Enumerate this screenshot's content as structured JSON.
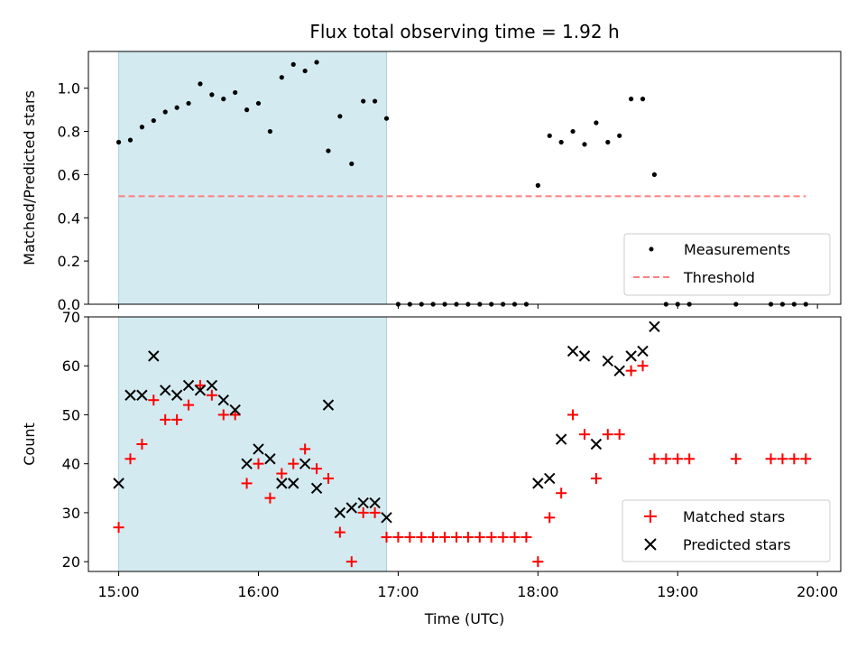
{
  "chart_data": [
    {
      "type": "scatter",
      "title": "Flux total observing time = 1.92 h",
      "xlabel": "",
      "ylabel": "Matched/Predicted stars",
      "xlim": [
        "14:47",
        "20:10"
      ],
      "ylim": [
        0,
        1.17
      ],
      "yticks": [
        "0.0",
        "0.2",
        "0.4",
        "0.6",
        "0.8",
        "1.0"
      ],
      "xticks": [
        "15:00",
        "16:00",
        "17:00",
        "18:00",
        "19:00",
        "20:00"
      ],
      "x_tick_labels_shown": false,
      "grid": false,
      "legend_position": "lower-right",
      "shaded_interval": {
        "start": "15:00",
        "end": "16:55",
        "color": "#d3eaf0"
      },
      "series": [
        {
          "name": "Measurements",
          "kind": "dots",
          "color": "#000000",
          "points": [
            [
              "15:00",
              0.75
            ],
            [
              "15:05",
              0.76
            ],
            [
              "15:10",
              0.82
            ],
            [
              "15:15",
              0.85
            ],
            [
              "15:20",
              0.89
            ],
            [
              "15:25",
              0.91
            ],
            [
              "15:30",
              0.93
            ],
            [
              "15:35",
              1.02
            ],
            [
              "15:40",
              0.97
            ],
            [
              "15:45",
              0.95
            ],
            [
              "15:50",
              0.98
            ],
            [
              "15:55",
              0.9
            ],
            [
              "16:00",
              0.93
            ],
            [
              "16:05",
              0.8
            ],
            [
              "16:10",
              1.05
            ],
            [
              "16:15",
              1.11
            ],
            [
              "16:20",
              1.08
            ],
            [
              "16:25",
              1.12
            ],
            [
              "16:30",
              0.71
            ],
            [
              "16:35",
              0.87
            ],
            [
              "16:40",
              0.65
            ],
            [
              "16:45",
              0.94
            ],
            [
              "16:50",
              0.94
            ],
            [
              "16:55",
              0.86
            ],
            [
              "17:00",
              0.0
            ],
            [
              "17:05",
              0.0
            ],
            [
              "17:10",
              0.0
            ],
            [
              "17:15",
              0.0
            ],
            [
              "17:20",
              0.0
            ],
            [
              "17:25",
              0.0
            ],
            [
              "17:30",
              0.0
            ],
            [
              "17:35",
              0.0
            ],
            [
              "17:40",
              0.0
            ],
            [
              "17:45",
              0.0
            ],
            [
              "17:50",
              0.0
            ],
            [
              "17:55",
              0.0
            ],
            [
              "18:00",
              0.55
            ],
            [
              "18:05",
              0.78
            ],
            [
              "18:10",
              0.75
            ],
            [
              "18:15",
              0.8
            ],
            [
              "18:20",
              0.74
            ],
            [
              "18:25",
              0.84
            ],
            [
              "18:30",
              0.75
            ],
            [
              "18:35",
              0.78
            ],
            [
              "18:40",
              0.95
            ],
            [
              "18:45",
              0.95
            ],
            [
              "18:50",
              0.6
            ],
            [
              "18:55",
              0.0
            ],
            [
              "19:00",
              0.0
            ],
            [
              "19:05",
              0.0
            ],
            [
              "19:25",
              0.0
            ],
            [
              "19:40",
              0.0
            ],
            [
              "19:45",
              0.0
            ],
            [
              "19:50",
              0.0
            ],
            [
              "19:55",
              0.0
            ]
          ]
        },
        {
          "name": "Threshold",
          "kind": "dashed-line",
          "color": "#ff7f7f",
          "points": [
            [
              "15:00",
              0.5
            ],
            [
              "19:55",
              0.5
            ]
          ]
        }
      ]
    },
    {
      "type": "scatter",
      "title": "",
      "xlabel": "Time (UTC)",
      "ylabel": "Count",
      "xlim": [
        "14:47",
        "20:10"
      ],
      "ylim": [
        18,
        70
      ],
      "yticks": [
        "20",
        "30",
        "40",
        "50",
        "60",
        "70"
      ],
      "xticks": [
        "15:00",
        "16:00",
        "17:00",
        "18:00",
        "19:00",
        "20:00"
      ],
      "grid": false,
      "legend_position": "lower-right",
      "shaded_interval": {
        "start": "15:00",
        "end": "16:55",
        "color": "#d3eaf0"
      },
      "series": [
        {
          "name": "Matched stars",
          "kind": "plus",
          "color": "#ff0000",
          "points": [
            [
              "15:00",
              27
            ],
            [
              "15:05",
              41
            ],
            [
              "15:10",
              44
            ],
            [
              "15:15",
              53
            ],
            [
              "15:20",
              49
            ],
            [
              "15:25",
              49
            ],
            [
              "15:30",
              52
            ],
            [
              "15:35",
              56
            ],
            [
              "15:40",
              54
            ],
            [
              "15:45",
              50
            ],
            [
              "15:50",
              50
            ],
            [
              "15:55",
              36
            ],
            [
              "16:00",
              40
            ],
            [
              "16:05",
              33
            ],
            [
              "16:10",
              38
            ],
            [
              "16:15",
              40
            ],
            [
              "16:20",
              43
            ],
            [
              "16:25",
              39
            ],
            [
              "16:30",
              37
            ],
            [
              "16:35",
              26
            ],
            [
              "16:40",
              20
            ],
            [
              "16:45",
              30
            ],
            [
              "16:50",
              30
            ],
            [
              "16:55",
              25
            ],
            [
              "17:00",
              25
            ],
            [
              "17:05",
              25
            ],
            [
              "17:10",
              25
            ],
            [
              "17:15",
              25
            ],
            [
              "17:20",
              25
            ],
            [
              "17:25",
              25
            ],
            [
              "17:30",
              25
            ],
            [
              "17:35",
              25
            ],
            [
              "17:40",
              25
            ],
            [
              "17:45",
              25
            ],
            [
              "17:50",
              25
            ],
            [
              "17:55",
              25
            ],
            [
              "18:00",
              20
            ],
            [
              "18:05",
              29
            ],
            [
              "18:10",
              34
            ],
            [
              "18:15",
              50
            ],
            [
              "18:20",
              46
            ],
            [
              "18:25",
              37
            ],
            [
              "18:30",
              46
            ],
            [
              "18:35",
              46
            ],
            [
              "18:40",
              59
            ],
            [
              "18:45",
              60
            ],
            [
              "18:50",
              41
            ],
            [
              "18:55",
              41
            ],
            [
              "19:00",
              41
            ],
            [
              "19:05",
              41
            ],
            [
              "19:25",
              41
            ],
            [
              "19:40",
              41
            ],
            [
              "19:45",
              41
            ],
            [
              "19:50",
              41
            ],
            [
              "19:55",
              41
            ]
          ]
        },
        {
          "name": "Predicted stars",
          "kind": "x",
          "color": "#000000",
          "points": [
            [
              "15:00",
              36
            ],
            [
              "15:05",
              54
            ],
            [
              "15:10",
              54
            ],
            [
              "15:15",
              62
            ],
            [
              "15:20",
              55
            ],
            [
              "15:25",
              54
            ],
            [
              "15:30",
              56
            ],
            [
              "15:35",
              55
            ],
            [
              "15:40",
              56
            ],
            [
              "15:45",
              53
            ],
            [
              "15:50",
              51
            ],
            [
              "15:55",
              40
            ],
            [
              "16:00",
              43
            ],
            [
              "16:05",
              41
            ],
            [
              "16:10",
              36
            ],
            [
              "16:15",
              36
            ],
            [
              "16:20",
              40
            ],
            [
              "16:25",
              35
            ],
            [
              "16:30",
              52
            ],
            [
              "16:35",
              30
            ],
            [
              "16:40",
              31
            ],
            [
              "16:45",
              32
            ],
            [
              "16:50",
              32
            ],
            [
              "16:55",
              29
            ],
            [
              "18:00",
              36
            ],
            [
              "18:05",
              37
            ],
            [
              "18:10",
              45
            ],
            [
              "18:15",
              63
            ],
            [
              "18:20",
              62
            ],
            [
              "18:25",
              44
            ],
            [
              "18:30",
              61
            ],
            [
              "18:35",
              59
            ],
            [
              "18:40",
              62
            ],
            [
              "18:45",
              63
            ],
            [
              "18:50",
              68
            ]
          ]
        }
      ]
    }
  ]
}
